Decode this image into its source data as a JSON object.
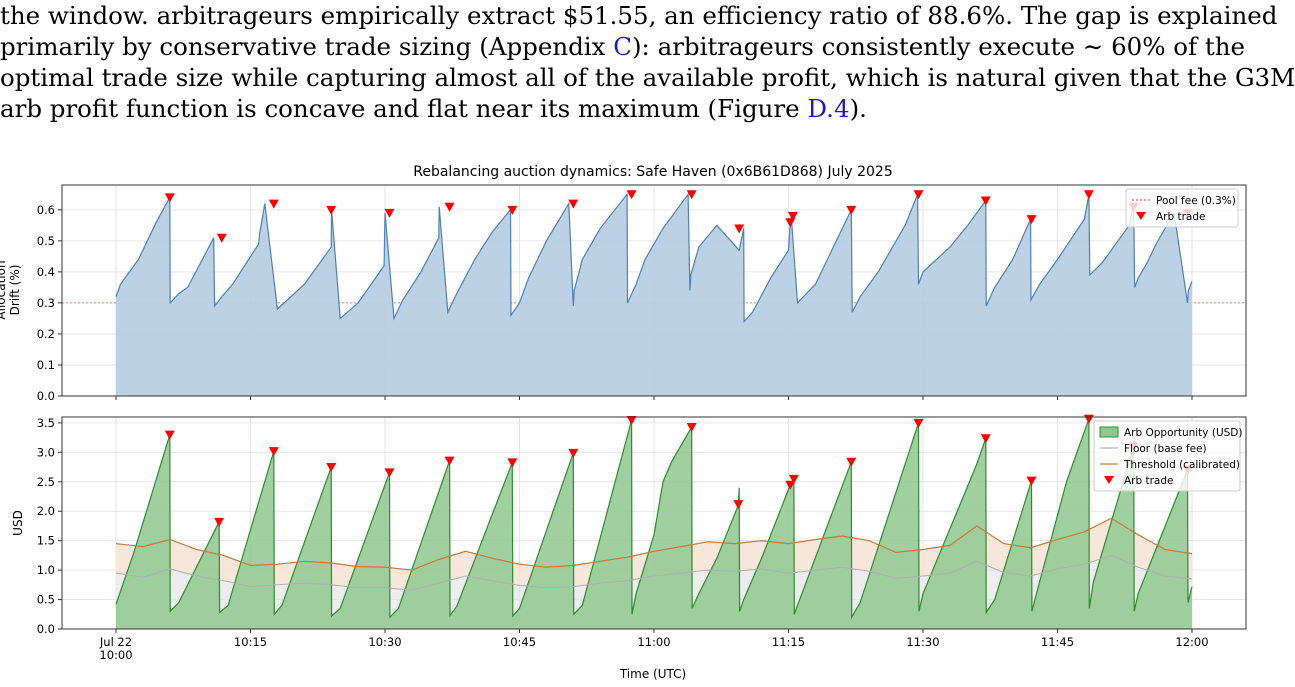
{
  "paragraph": {
    "lines": [
      {
        "pre": "the window. arbitrageurs empirically extract $51.55, an efficiency ratio of 88.6%. The gap is explained",
        "ref": "",
        "post": ""
      },
      {
        "pre": "primarily by conservative trade sizing (Appendix ",
        "ref": "C",
        "post": "): arbitrageurs consistently execute ∼ 60% of the"
      },
      {
        "pre": "optimal trade size while capturing almost all of the available profit, which is natural given that the G3M",
        "ref": "",
        "post": ""
      },
      {
        "pre": "arb profit function is concave and flat near its maximum (Figure ",
        "ref": "D.4",
        "post": ")."
      }
    ]
  },
  "figure": {
    "title": "Rebalancing auction dynamics: Safe Haven (0x6B61D868) July 2025",
    "xlabel": "Time (UTC)"
  },
  "chart_data": [
    {
      "type": "area",
      "title": "Rebalancing auction dynamics: Safe Haven (0x6B61D868) July 2025",
      "ylabel": "Allocation\nDrift (%)",
      "ylim": [
        0,
        0.68
      ],
      "yticks": [
        "0.0",
        "0.1",
        "0.2",
        "0.3",
        "0.4",
        "0.5",
        "0.6"
      ],
      "xlim_minutes": [
        0,
        120
      ],
      "grid": true,
      "legend_position": "top-right",
      "legend": [
        "Pool fee (0.3%)",
        "Arb trade"
      ],
      "fill_color": "#b9cfe3",
      "line_color": "#4a82b4",
      "fee_line": {
        "label": "Pool fee (0.3%)",
        "value": 0.3,
        "color": "#e06060"
      },
      "series": {
        "minutes": [
          0,
          0.5,
          2.5,
          4.5,
          6,
          6.05,
          7,
          8,
          10.9,
          11,
          11.8,
          13,
          15.9,
          16,
          16.6,
          18,
          21,
          24,
          24.05,
          25,
          27,
          29.9,
          30,
          31,
          32,
          34,
          36,
          36.05,
          37,
          38,
          40,
          42,
          44,
          44.05,
          45,
          46,
          48,
          50.5,
          51,
          51.1,
          52,
          54,
          57,
          57.05,
          58,
          59,
          61,
          63.8,
          64,
          64.1,
          65,
          67,
          69.5,
          70,
          70.05,
          71,
          73,
          75,
          75.2,
          75.3,
          76,
          78,
          82,
          82.1,
          83,
          85,
          88,
          89.4,
          89.5,
          90,
          93,
          95,
          97,
          97.05,
          98,
          100,
          102,
          102.05,
          103,
          105,
          108,
          108.5,
          108.6,
          110,
          113,
          113.5,
          113.6,
          114,
          115,
          116,
          118,
          119.5,
          119.6,
          120
        ],
        "drift": [
          0.32,
          0.36,
          0.44,
          0.56,
          0.64,
          0.3,
          0.33,
          0.35,
          0.51,
          0.29,
          0.32,
          0.36,
          0.49,
          0.52,
          0.62,
          0.28,
          0.36,
          0.48,
          0.6,
          0.25,
          0.3,
          0.42,
          0.59,
          0.25,
          0.31,
          0.4,
          0.51,
          0.61,
          0.27,
          0.33,
          0.44,
          0.53,
          0.6,
          0.26,
          0.3,
          0.38,
          0.5,
          0.62,
          0.29,
          0.34,
          0.44,
          0.54,
          0.65,
          0.3,
          0.36,
          0.44,
          0.54,
          0.65,
          0.34,
          0.39,
          0.48,
          0.55,
          0.47,
          0.54,
          0.24,
          0.27,
          0.38,
          0.47,
          0.56,
          0.58,
          0.3,
          0.36,
          0.6,
          0.27,
          0.32,
          0.4,
          0.55,
          0.65,
          0.36,
          0.4,
          0.48,
          0.55,
          0.63,
          0.29,
          0.35,
          0.44,
          0.57,
          0.31,
          0.36,
          0.44,
          0.57,
          0.65,
          0.39,
          0.43,
          0.55,
          0.62,
          0.35,
          0.38,
          0.43,
          0.49,
          0.59,
          0.3,
          0.34,
          0.37
        ]
      },
      "arb_trades": {
        "minutes": [
          6,
          11.8,
          17.6,
          24,
          30.5,
          37.2,
          44.2,
          51,
          57.5,
          64.2,
          69.5,
          75.2,
          75.5,
          82,
          89.5,
          97,
          102.1,
          108.5,
          113.5,
          119.5
        ],
        "drift": [
          0.64,
          0.51,
          0.62,
          0.6,
          0.59,
          0.61,
          0.6,
          0.62,
          0.65,
          0.65,
          0.54,
          0.56,
          0.58,
          0.6,
          0.65,
          0.63,
          0.57,
          0.65,
          0.61,
          0.59
        ]
      }
    },
    {
      "type": "area",
      "ylabel": "USD",
      "xlabel": "Time (UTC)",
      "ylim": [
        0,
        3.6
      ],
      "yticks": [
        "0.0",
        "0.5",
        "1.0",
        "1.5",
        "2.0",
        "2.5",
        "3.0",
        "3.5"
      ],
      "xlim_minutes": [
        0,
        120
      ],
      "xticks": [
        {
          "minute": 0,
          "label": "Jul 22",
          "label2": "10:00"
        },
        {
          "minute": 15,
          "label": "10:15"
        },
        {
          "minute": 30,
          "label": "10:30"
        },
        {
          "minute": 45,
          "label": "10:45"
        },
        {
          "minute": 60,
          "label": "11:00"
        },
        {
          "minute": 75,
          "label": "11:15"
        },
        {
          "minute": 90,
          "label": "11:30"
        },
        {
          "minute": 105,
          "label": "11:45"
        },
        {
          "minute": 120,
          "label": "12:00"
        }
      ],
      "grid": true,
      "legend_position": "top-right",
      "legend": [
        "Arb Opportunity (USD)",
        "Floor (base fee)",
        "Threshold (calibrated)",
        "Arb trade"
      ],
      "colors": {
        "opportunity_fill": "#8fc88f",
        "opportunity_line": "#2e8b2e",
        "floor": "#b0b0b0",
        "threshold": "#c87a3c",
        "band": "#f6e4d6",
        "floor_band": "#e6e6ea"
      },
      "opportunity": {
        "minutes": [
          0,
          2,
          4,
          6,
          6.05,
          7,
          11.5,
          11.55,
          12.5,
          17.6,
          17.65,
          18.5,
          24,
          24.05,
          25,
          30.5,
          30.55,
          31.5,
          37.2,
          37.25,
          38,
          44.2,
          44.25,
          45,
          51,
          51.05,
          52,
          57.5,
          57.55,
          58,
          60,
          61,
          62,
          64.2,
          64.25,
          65,
          67,
          69.4,
          69.5,
          69.55,
          70,
          72,
          75.2,
          75.6,
          75.65,
          76,
          82,
          82.05,
          83,
          89.5,
          89.55,
          90,
          93,
          96,
          97,
          97.05,
          98,
          102.1,
          102.15,
          103,
          106,
          108.5,
          108.55,
          109,
          113.5,
          113.55,
          114,
          119.5,
          119.55,
          120
        ],
        "usd": [
          0.42,
          1.3,
          2.3,
          3.3,
          0.3,
          0.45,
          1.82,
          0.28,
          0.4,
          3.02,
          0.25,
          0.4,
          2.75,
          0.22,
          0.35,
          2.66,
          0.2,
          0.35,
          2.86,
          0.23,
          0.38,
          2.83,
          0.22,
          0.35,
          2.99,
          0.25,
          0.4,
          3.55,
          0.25,
          0.6,
          1.6,
          2.5,
          2.85,
          3.43,
          0.35,
          0.6,
          1.2,
          2.1,
          2.4,
          0.3,
          0.5,
          1.2,
          2.45,
          2.55,
          0.25,
          0.4,
          2.84,
          0.2,
          0.45,
          3.5,
          0.3,
          0.6,
          1.7,
          2.8,
          3.24,
          0.28,
          0.5,
          2.52,
          0.3,
          0.8,
          2.5,
          3.57,
          0.35,
          0.8,
          3.1,
          0.3,
          0.6,
          2.7,
          0.45,
          0.72
        ]
      },
      "threshold": {
        "minutes": [
          0,
          3,
          6,
          9,
          12,
          15,
          18,
          21,
          24,
          27,
          30,
          33,
          36,
          39,
          42,
          45,
          48,
          51,
          54,
          57,
          60,
          63,
          66,
          69,
          72,
          75,
          78,
          81,
          84,
          87,
          90,
          93,
          96,
          99,
          102,
          105,
          108,
          111,
          114,
          117,
          120
        ],
        "usd": [
          1.45,
          1.4,
          1.52,
          1.35,
          1.25,
          1.08,
          1.1,
          1.15,
          1.12,
          1.06,
          1.05,
          1.0,
          1.18,
          1.32,
          1.2,
          1.1,
          1.05,
          1.08,
          1.15,
          1.22,
          1.32,
          1.4,
          1.48,
          1.45,
          1.5,
          1.45,
          1.52,
          1.58,
          1.5,
          1.3,
          1.35,
          1.42,
          1.75,
          1.45,
          1.38,
          1.52,
          1.65,
          1.88,
          1.6,
          1.35,
          1.28
        ]
      },
      "floor": {
        "minutes": [
          0,
          3,
          6,
          9,
          12,
          15,
          18,
          21,
          24,
          27,
          30,
          33,
          36,
          39,
          42,
          45,
          48,
          51,
          54,
          57,
          60,
          63,
          66,
          69,
          72,
          75,
          78,
          81,
          84,
          87,
          90,
          93,
          96,
          99,
          102,
          105,
          108,
          111,
          114,
          117,
          120
        ],
        "usd": [
          0.95,
          0.88,
          1.02,
          0.9,
          0.82,
          0.72,
          0.75,
          0.78,
          0.75,
          0.7,
          0.7,
          0.66,
          0.78,
          0.9,
          0.82,
          0.74,
          0.7,
          0.72,
          0.78,
          0.82,
          0.9,
          0.95,
          1.0,
          0.98,
          1.02,
          0.95,
          1.0,
          1.05,
          0.98,
          0.86,
          0.9,
          0.95,
          1.15,
          0.96,
          0.9,
          1.02,
          1.1,
          1.25,
          1.05,
          0.9,
          0.85
        ]
      },
      "arb_trades": {
        "minutes": [
          6,
          11.5,
          17.6,
          24,
          30.5,
          37.2,
          44.2,
          51,
          57.5,
          64.2,
          69.4,
          75.2,
          75.6,
          82,
          89.5,
          97,
          102.1,
          108.5,
          113.5,
          119.5
        ],
        "usd": [
          3.3,
          1.82,
          3.02,
          2.75,
          2.66,
          2.86,
          2.83,
          2.99,
          3.55,
          3.43,
          2.12,
          2.45,
          2.55,
          2.84,
          3.5,
          3.24,
          2.52,
          3.57,
          3.1,
          2.7
        ]
      }
    }
  ]
}
